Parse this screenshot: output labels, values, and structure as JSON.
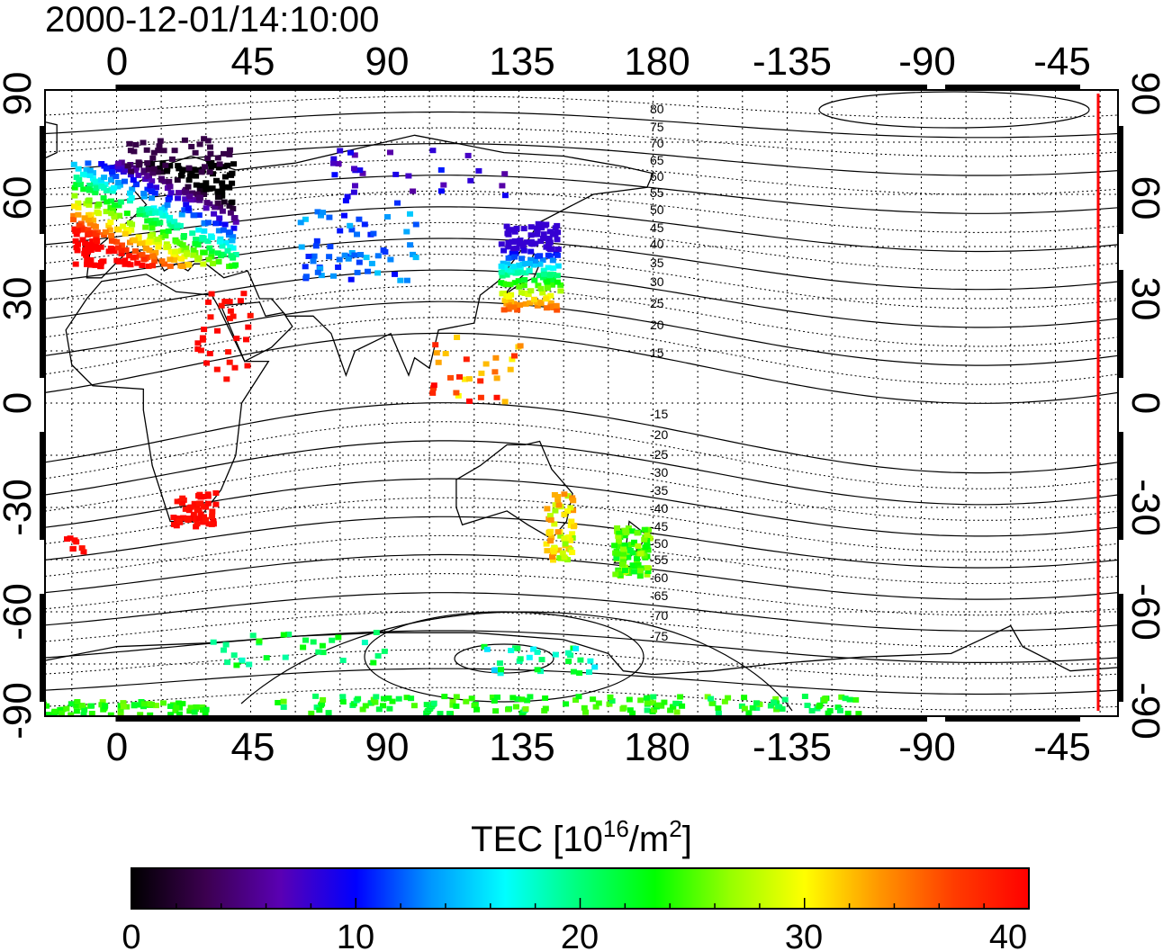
{
  "timestamp": "2000-12-01/14:10:00",
  "map": {
    "lon_ticks_top": [
      "0",
      "45",
      "90",
      "135",
      "180",
      "-135",
      "-90",
      "-45"
    ],
    "lon_ticks_bottom": [
      "0",
      "45",
      "90",
      "135",
      "180",
      "-135",
      "-90",
      "-45"
    ],
    "lat_ticks_left": [
      "90",
      "60",
      "30",
      "0",
      "-30",
      "-60",
      "-90"
    ],
    "lat_ticks_right": [
      "90",
      "60",
      "30",
      "0",
      "-30",
      "-60",
      "-90"
    ],
    "contour_labels_north": [
      "80",
      "75",
      "70",
      "65",
      "60",
      "55",
      "50",
      "45",
      "40",
      "35",
      "30",
      "25",
      "20",
      "15"
    ],
    "contour_labels_south": [
      "-15",
      "-20",
      "-25",
      "-30",
      "-35",
      "-40",
      "-45",
      "-50",
      "-55",
      "-60",
      "-65",
      "-70",
      "-75"
    ],
    "terminator_color": "#ff0000"
  },
  "colorbar": {
    "title_prefix": "TEC  [10",
    "title_exp1": "16",
    "title_mid": "/m",
    "title_exp2": "2",
    "title_suffix": "]",
    "min": 0,
    "max": 40,
    "tick_labels": [
      "0",
      "10",
      "20",
      "30",
      "40"
    ],
    "colors": [
      "#000000",
      "#3c0050",
      "#5a00b4",
      "#0000ff",
      "#0096ff",
      "#00ffff",
      "#00ff78",
      "#00ff00",
      "#96ff00",
      "#ffff00",
      "#ff9600",
      "#ff3c00",
      "#ff0000"
    ]
  }
}
